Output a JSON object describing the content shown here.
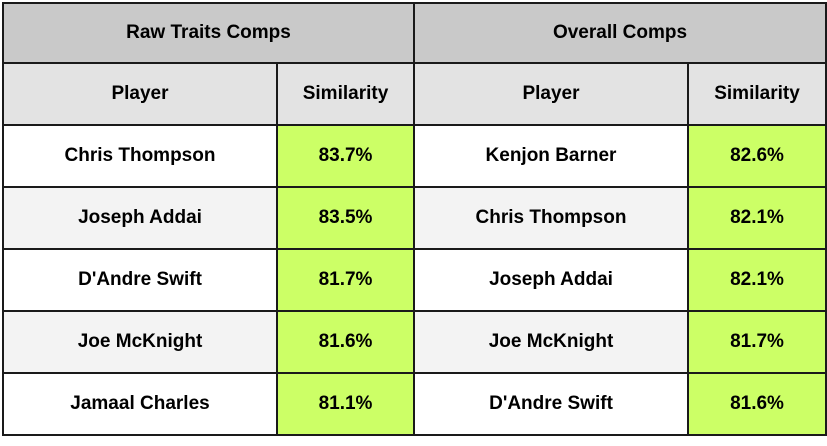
{
  "groups": {
    "left": "Raw Traits Comps",
    "right": "Overall Comps"
  },
  "headers": {
    "player": "Player",
    "similarity": "Similarity"
  },
  "raw_traits_comps": [
    {
      "player": "Chris Thompson",
      "similarity": "83.7%"
    },
    {
      "player": "Joseph Addai",
      "similarity": "83.5%"
    },
    {
      "player": "D'Andre Swift",
      "similarity": "81.7%"
    },
    {
      "player": "Joe McKnight",
      "similarity": "81.6%"
    },
    {
      "player": "Jamaal Charles",
      "similarity": "81.1%"
    }
  ],
  "overall_comps": [
    {
      "player": "Kenjon Barner",
      "similarity": "82.6%"
    },
    {
      "player": "Chris Thompson",
      "similarity": "82.1%"
    },
    {
      "player": "Joseph Addai",
      "similarity": "82.1%"
    },
    {
      "player": "Joe McKnight",
      "similarity": "81.7%"
    },
    {
      "player": "D'Andre Swift",
      "similarity": "81.6%"
    }
  ],
  "colors": {
    "similarity_fill": "#ccff66",
    "group_header_fill": "#c9c9c9",
    "sub_header_fill": "#e3e3e3",
    "alt_row_fill": "#f3f3f3",
    "border": "#1a1a1a"
  }
}
